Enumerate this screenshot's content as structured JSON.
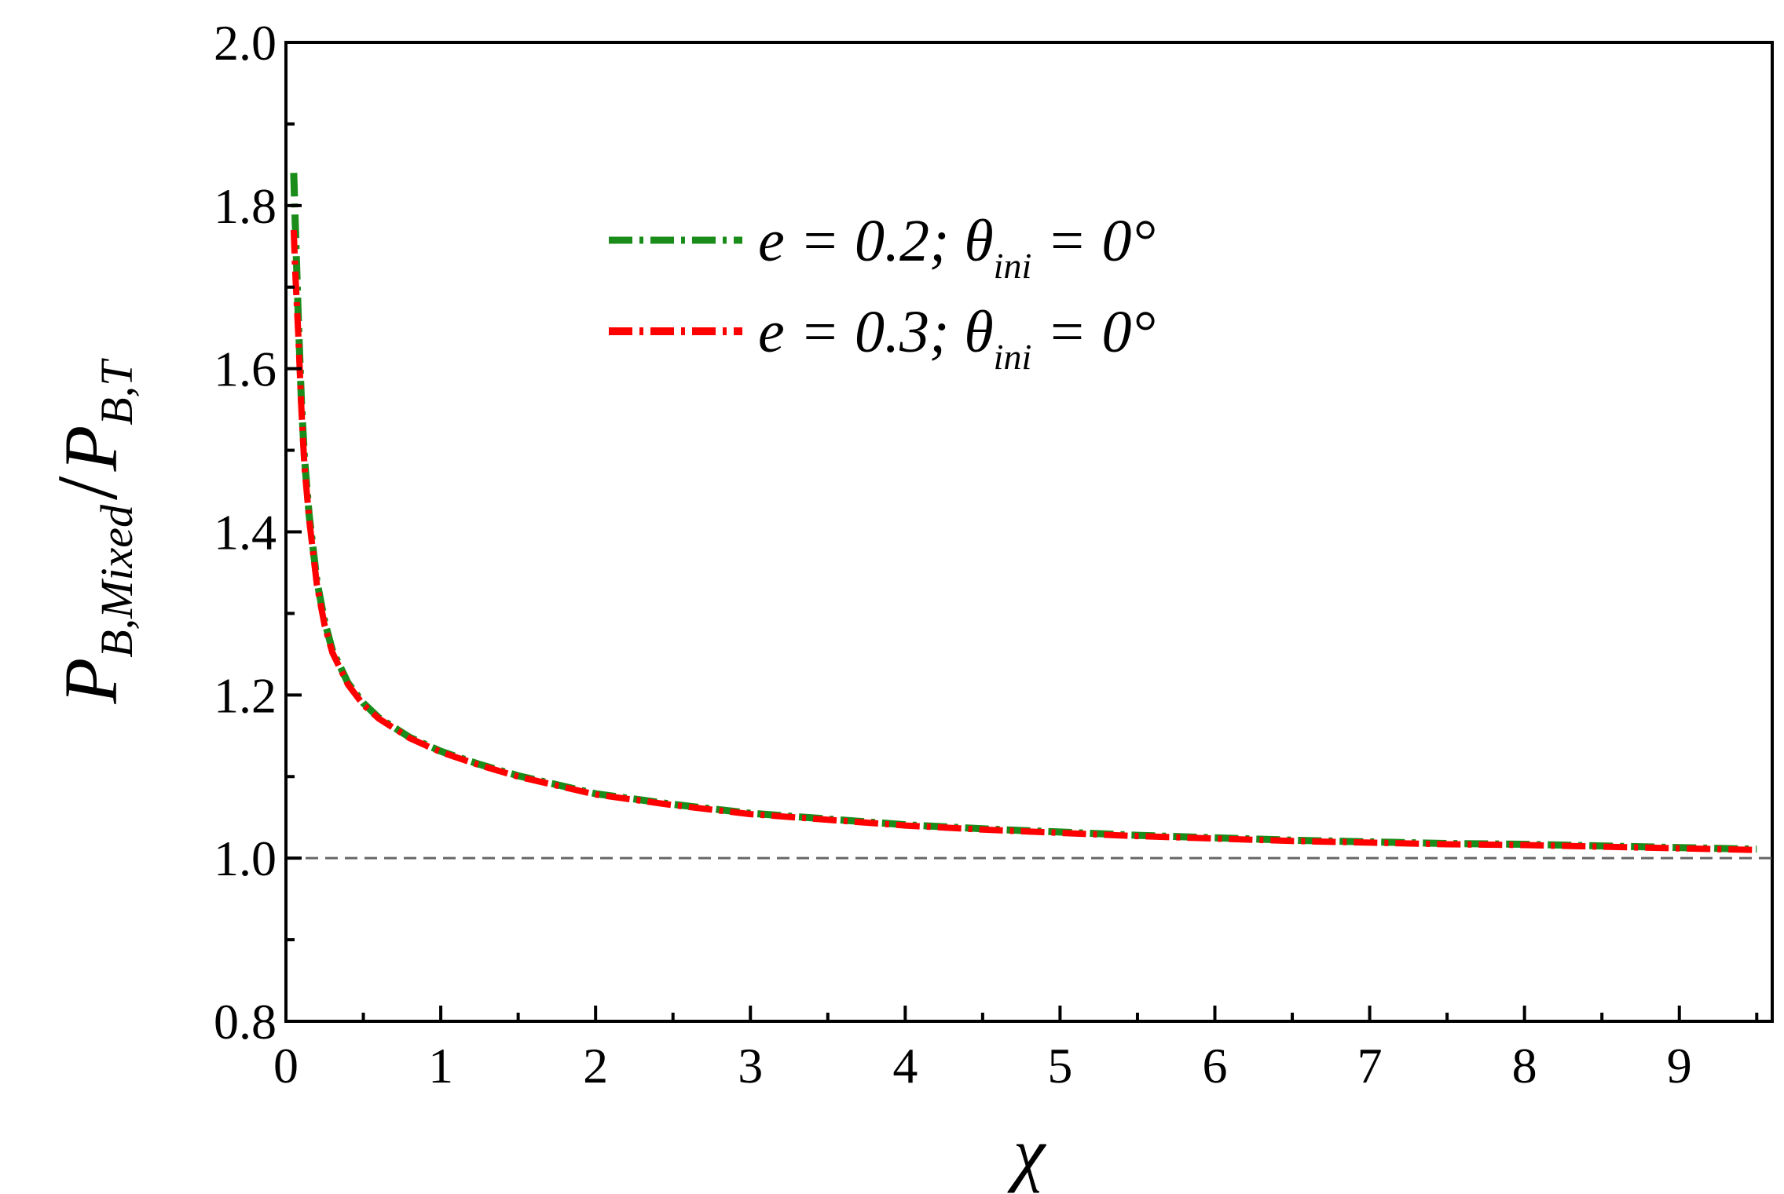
{
  "chart_data": {
    "type": "line",
    "xlabel": "χ",
    "ylabel": {
      "main": "P",
      "numerator_subscript": "B,Mixed",
      "separator": "/",
      "denominator_subscript": "B,T"
    },
    "xlim": [
      0,
      9.6
    ],
    "ylim": [
      0.8,
      2.0
    ],
    "xticks": [
      "0",
      "1",
      "2",
      "3",
      "4",
      "5",
      "6",
      "7",
      "8",
      "9"
    ],
    "yticks": [
      "0.8",
      "1.0",
      "1.2",
      "1.4",
      "1.6",
      "1.8",
      "2.0"
    ],
    "grid": false,
    "legend_position": "top-center",
    "reference_line": {
      "y": 1.0,
      "style": "dashed",
      "color": "#666666"
    },
    "series": [
      {
        "name": "e = 0.2; θini = 0°",
        "legend": {
          "prefix": "e = 0.2; ",
          "theta": "θ",
          "sub": "ini",
          "suffix": " = 0°"
        },
        "color": "#1a8c1a",
        "style": "dash-dot",
        "x": [
          0.05,
          0.06,
          0.08,
          0.1,
          0.12,
          0.15,
          0.2,
          0.25,
          0.3,
          0.4,
          0.5,
          0.6,
          0.8,
          1.0,
          1.25,
          1.5,
          1.75,
          2.0,
          2.5,
          3.0,
          3.5,
          4.0,
          4.5,
          5.0,
          5.5,
          6.0,
          6.5,
          7.0,
          7.5,
          8.0,
          8.5,
          9.0,
          9.5
        ],
        "y": [
          1.84,
          1.78,
          1.66,
          1.56,
          1.49,
          1.42,
          1.34,
          1.29,
          1.255,
          1.215,
          1.19,
          1.172,
          1.148,
          1.131,
          1.115,
          1.101,
          1.09,
          1.079,
          1.066,
          1.055,
          1.048,
          1.041,
          1.036,
          1.032,
          1.028,
          1.025,
          1.022,
          1.02,
          1.018,
          1.017,
          1.015,
          1.013,
          1.011
        ]
      },
      {
        "name": "e = 0.3; θini = 0°",
        "legend": {
          "prefix": "e = 0.3; ",
          "theta": "θ",
          "sub": "ini",
          "suffix": " = 0°"
        },
        "color": "#ff0000",
        "style": "dash-dot",
        "x": [
          0.05,
          0.06,
          0.08,
          0.1,
          0.12,
          0.15,
          0.2,
          0.25,
          0.3,
          0.4,
          0.5,
          0.6,
          0.8,
          1.0,
          1.25,
          1.5,
          1.75,
          2.0,
          2.5,
          3.0,
          3.5,
          4.0,
          4.5,
          5.0,
          5.5,
          6.0,
          6.5,
          7.0,
          7.5,
          8.0,
          8.5,
          9.0,
          9.5
        ],
        "y": [
          1.77,
          1.72,
          1.64,
          1.55,
          1.48,
          1.415,
          1.335,
          1.285,
          1.252,
          1.213,
          1.188,
          1.171,
          1.147,
          1.13,
          1.114,
          1.1,
          1.089,
          1.078,
          1.065,
          1.054,
          1.047,
          1.04,
          1.035,
          1.031,
          1.027,
          1.024,
          1.021,
          1.019,
          1.017,
          1.016,
          1.014,
          1.012,
          1.01
        ]
      }
    ]
  }
}
